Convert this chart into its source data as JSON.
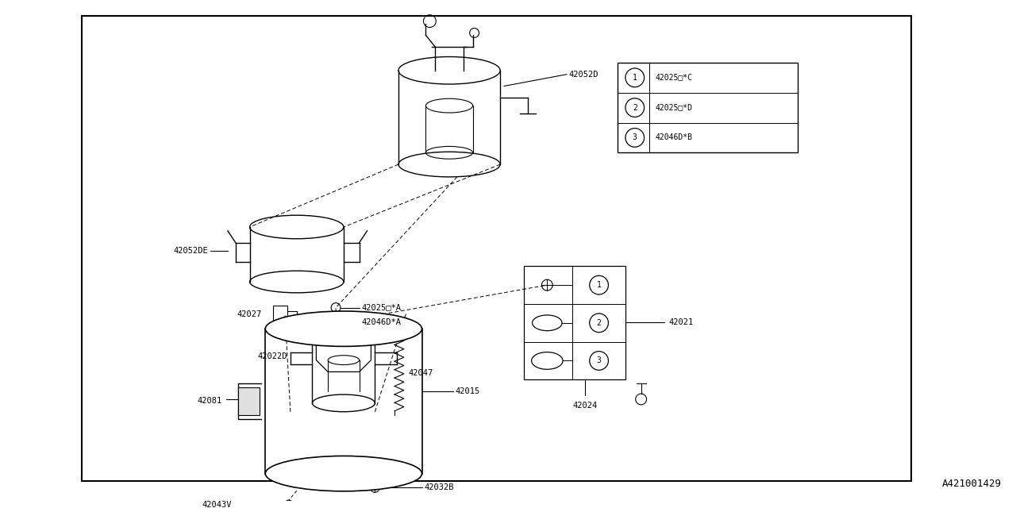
{
  "bg_color": "#ffffff",
  "line_color": "#000000",
  "font_family": "monospace",
  "title_bottom_right": "A421001429",
  "legend_items": [
    [
      "1",
      "42025□*C"
    ],
    [
      "2",
      "42025□*D"
    ],
    [
      "3",
      "42046D*B"
    ]
  ],
  "fs": 7.5,
  "fs_small": 6.5
}
